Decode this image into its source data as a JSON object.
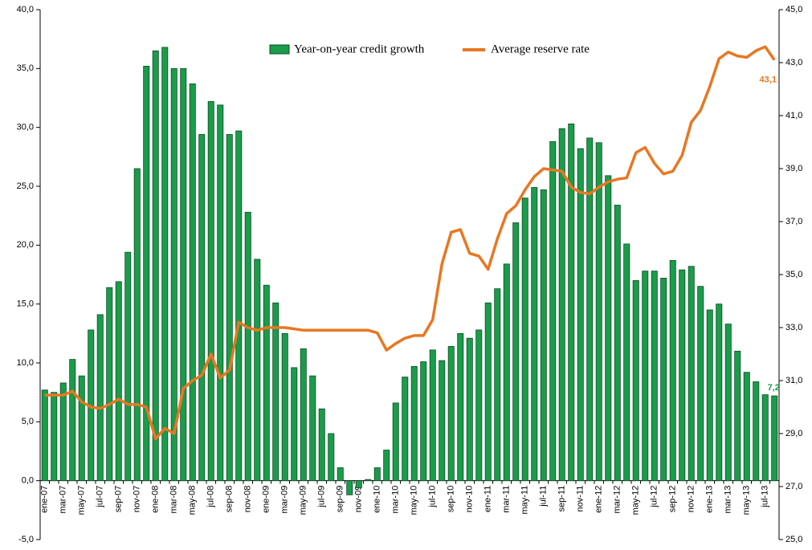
{
  "chart_data": {
    "type": "bar_line",
    "categories": [
      "ene-07",
      null,
      "mar-07",
      null,
      "may-07",
      null,
      "jul-07",
      null,
      "sep-07",
      null,
      "nov-07",
      null,
      "ene-08",
      null,
      "mar-08",
      null,
      "may-08",
      null,
      "jul-08",
      null,
      "sep-08",
      null,
      "nov-08",
      null,
      "ene-09",
      null,
      "mar-09",
      null,
      "may-09",
      null,
      "jul-09",
      null,
      "sep-09",
      null,
      "nov-09",
      null,
      "ene-10",
      null,
      "mar-10",
      null,
      "may-10",
      null,
      "jul-10",
      null,
      "sep-10",
      null,
      "nov-10",
      null,
      "ene-11",
      null,
      "mar-11",
      null,
      "may-11",
      null,
      "jul-11",
      null,
      "sep-11",
      null,
      "nov-11",
      null,
      "ene-12",
      null,
      "mar-12",
      null,
      "may-12",
      null,
      "jul-12",
      null,
      "sep-12",
      null,
      "nov-12",
      null,
      "ene-13",
      null,
      "mar-13",
      null,
      "may-13",
      null,
      "jul-13",
      null
    ],
    "series": [
      {
        "name": "Year-on-year credit growth",
        "type": "bar",
        "color": "#1a9c4a",
        "axis": "y",
        "values": [
          7.7,
          7.5,
          8.3,
          10.3,
          8.9,
          12.8,
          14.1,
          16.4,
          16.9,
          19.4,
          26.5,
          35.2,
          36.5,
          36.8,
          35.0,
          35.0,
          33.7,
          29.4,
          32.2,
          31.9,
          29.4,
          29.7,
          22.8,
          18.8,
          16.6,
          15.1,
          12.5,
          9.6,
          11.2,
          8.9,
          6.1,
          4.0,
          1.1,
          -1.2,
          -0.6,
          0.1,
          1.1,
          2.6,
          6.6,
          8.8,
          9.7,
          10.1,
          11.1,
          10.2,
          11.4,
          12.5,
          12.1,
          12.8,
          15.1,
          16.3,
          18.4,
          21.9,
          24.0,
          24.9,
          24.7,
          28.8,
          29.9,
          30.3,
          28.2,
          29.1,
          28.7,
          25.9,
          23.4,
          20.1,
          17.0,
          17.8,
          17.8,
          17.2,
          18.7,
          17.9,
          18.2,
          16.5,
          14.5,
          15.0,
          13.3,
          11.0,
          9.2,
          8.4,
          7.3,
          7.2
        ],
        "value_labels": [
          null,
          null,
          null,
          null,
          null,
          null,
          null,
          null,
          null,
          null,
          null,
          null,
          null,
          null,
          null,
          null,
          null,
          null,
          null,
          null,
          null,
          null,
          null,
          null,
          null,
          null,
          null,
          null,
          null,
          null,
          null,
          null,
          null,
          null,
          null,
          null,
          null,
          null,
          null,
          null,
          null,
          null,
          null,
          null,
          null,
          null,
          null,
          null,
          null,
          null,
          null,
          null,
          null,
          null,
          null,
          null,
          null,
          null,
          null,
          null,
          null,
          null,
          null,
          null,
          null,
          null,
          null,
          null,
          null,
          null,
          null,
          null,
          null,
          null,
          null,
          null,
          null,
          null,
          null,
          "7,2"
        ]
      },
      {
        "name": "Average reserve rate",
        "type": "line",
        "color": "#e87722",
        "axis": "y2",
        "values": [
          30.45,
          30.45,
          30.45,
          30.6,
          30.2,
          30.0,
          29.95,
          30.1,
          30.3,
          30.1,
          30.1,
          30.0,
          28.8,
          29.2,
          29.0,
          30.7,
          31.0,
          31.2,
          32.0,
          31.1,
          31.4,
          33.2,
          33.0,
          32.9,
          33.0,
          33.0,
          33.0,
          32.95,
          32.9,
          32.9,
          32.9,
          32.9,
          32.9,
          32.9,
          32.9,
          32.9,
          32.8,
          32.15,
          32.4,
          32.6,
          32.7,
          32.7,
          33.3,
          35.4,
          36.6,
          36.7,
          35.8,
          35.7,
          35.2,
          36.35,
          37.3,
          37.6,
          38.2,
          38.7,
          39.0,
          38.95,
          38.9,
          38.3,
          38.1,
          38.05,
          38.3,
          38.5,
          38.6,
          38.65,
          39.6,
          39.8,
          39.2,
          38.8,
          38.9,
          39.5,
          40.75,
          41.2,
          42.1,
          43.15,
          43.4,
          43.25,
          43.2,
          43.45,
          43.6,
          43.1
        ],
        "value_labels": [
          null,
          null,
          null,
          null,
          null,
          null,
          null,
          null,
          null,
          null,
          null,
          null,
          null,
          null,
          null,
          null,
          null,
          null,
          null,
          null,
          null,
          null,
          null,
          null,
          null,
          null,
          null,
          null,
          null,
          null,
          null,
          null,
          null,
          null,
          null,
          null,
          null,
          null,
          null,
          null,
          null,
          null,
          null,
          null,
          null,
          null,
          null,
          null,
          null,
          null,
          null,
          null,
          null,
          null,
          null,
          null,
          null,
          null,
          null,
          null,
          null,
          null,
          null,
          null,
          null,
          null,
          null,
          null,
          null,
          null,
          null,
          null,
          null,
          null,
          null,
          null,
          null,
          null,
          null,
          "43,1"
        ]
      }
    ],
    "ylim": [
      -5,
      40
    ],
    "yticks": [
      {
        "value": -5,
        "label": "-5,0"
      },
      {
        "value": 0,
        "label": "0,0"
      },
      {
        "value": 5,
        "label": "5,0"
      },
      {
        "value": 10,
        "label": "10,0"
      },
      {
        "value": 15,
        "label": "15,0"
      },
      {
        "value": 20,
        "label": "20,0"
      },
      {
        "value": 25,
        "label": "25,0"
      },
      {
        "value": 30,
        "label": "30,0"
      },
      {
        "value": 35,
        "label": "35,0"
      },
      {
        "value": 40,
        "label": "40,0"
      }
    ],
    "y2lim": [
      25,
      45
    ],
    "y2ticks": [
      {
        "value": 25,
        "label": "25,0"
      },
      {
        "value": 27,
        "label": "27,0"
      },
      {
        "value": 29,
        "label": "29,0"
      },
      {
        "value": 31,
        "label": "31,0"
      },
      {
        "value": 33,
        "label": "33,0"
      },
      {
        "value": 35,
        "label": "35,0"
      },
      {
        "value": 37,
        "label": "37,0"
      },
      {
        "value": 39,
        "label": "39,0"
      },
      {
        "value": 41,
        "label": "41,0"
      },
      {
        "value": 43,
        "label": "43,0"
      },
      {
        "value": 45,
        "label": "45,0"
      }
    ],
    "legend": "top"
  }
}
